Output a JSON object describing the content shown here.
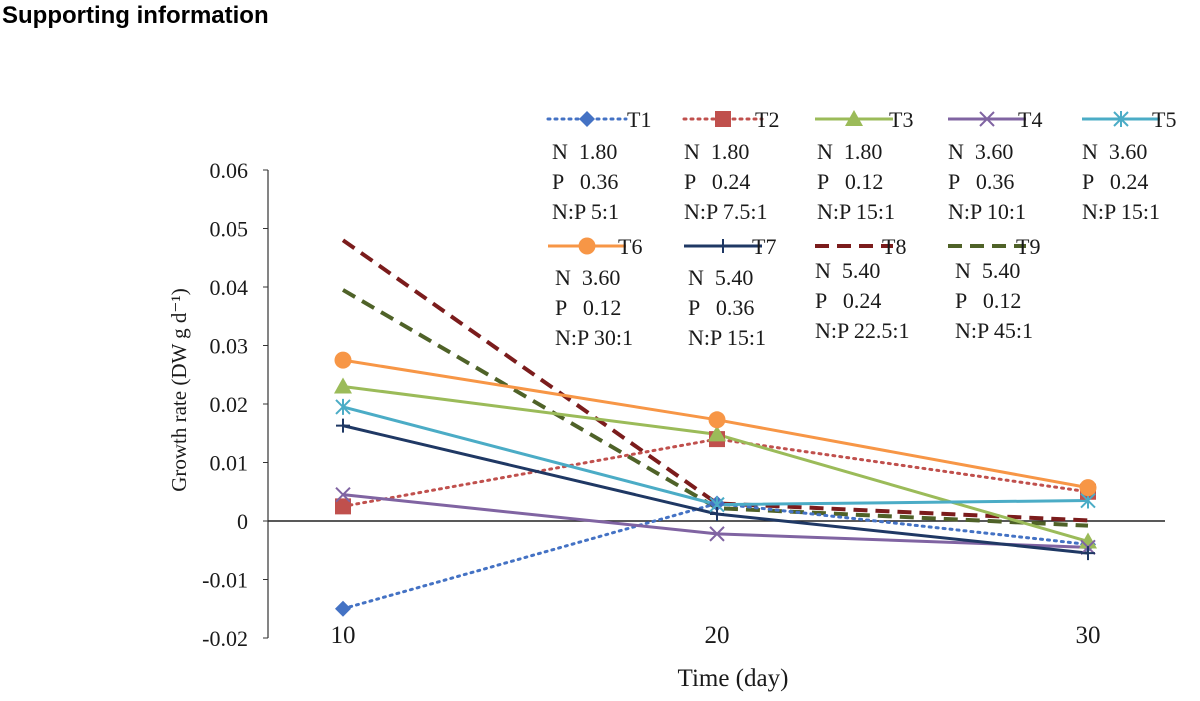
{
  "page": {
    "heading": "Supporting information"
  },
  "chart_data": {
    "type": "line",
    "title": "",
    "xlabel": "Time (day)",
    "ylabel": "Growth rate (DW g d⁻¹)",
    "x": [
      10,
      20,
      30
    ],
    "x_tick_labels": [
      "10",
      "20",
      "30"
    ],
    "ylim": [
      -0.02,
      0.06
    ],
    "y_ticks": [
      -0.02,
      -0.01,
      0,
      0.01,
      0.02,
      0.03,
      0.04,
      0.05,
      0.06
    ],
    "y_tick_labels": [
      "-0.02",
      "-0.01",
      "0",
      "0.01",
      "0.02",
      "0.03",
      "0.04",
      "0.05",
      "0.06"
    ],
    "grid": false,
    "legend_position": "top-right",
    "series": [
      {
        "name": "T1",
        "values": [
          -0.015,
          0.003,
          -0.004
        ],
        "color": "#4472c4",
        "dash": "dotted",
        "marker": "diamond",
        "n": "N  1.80",
        "p": "P   0.36",
        "np": "N:P 5:1"
      },
      {
        "name": "T2",
        "values": [
          0.0025,
          0.014,
          0.005
        ],
        "color": "#c0504d",
        "dash": "dotted",
        "marker": "square",
        "n": "N  1.80",
        "p": "P   0.24",
        "np": "N:P 7.5:1"
      },
      {
        "name": "T3",
        "values": [
          0.023,
          0.0148,
          -0.0035
        ],
        "color": "#9bbb59",
        "dash": "solid",
        "marker": "triangle",
        "n": "N  1.80",
        "p": "P   0.12",
        "np": "N:P 15:1"
      },
      {
        "name": "T4",
        "values": [
          0.0045,
          -0.0022,
          -0.0045
        ],
        "color": "#8064a2",
        "dash": "solid",
        "marker": "x",
        "n": "N  3.60",
        "p": "P   0.36",
        "np": "N:P 10:1"
      },
      {
        "name": "T5",
        "values": [
          0.0195,
          0.0028,
          0.0035
        ],
        "color": "#4bacc6",
        "dash": "solid",
        "marker": "asterisk",
        "n": "N  3.60",
        "p": "P   0.24",
        "np": "N:P 15:1"
      },
      {
        "name": "T6",
        "values": [
          0.0275,
          0.0173,
          0.0057
        ],
        "color": "#f79646",
        "dash": "solid",
        "marker": "circle",
        "n": "N  3.60",
        "p": "P   0.12",
        "np": "N:P 30:1"
      },
      {
        "name": "T7",
        "values": [
          0.0163,
          0.0012,
          -0.0055
        ],
        "color": "#1f3864",
        "dash": "solid",
        "marker": "plus",
        "n": "N  5.40",
        "p": "P   0.36",
        "np": "N:P 15:1"
      },
      {
        "name": "T8",
        "values": [
          0.048,
          0.003,
          0.0001
        ],
        "color": "#7b1c1c",
        "dash": "dashed",
        "marker": "none",
        "n": "N  5.40",
        "p": "P   0.24",
        "np": "N:P 22.5:1"
      },
      {
        "name": "T9",
        "values": [
          0.0395,
          0.0022,
          -0.0008
        ],
        "color": "#4f6228",
        "dash": "dashed",
        "marker": "none",
        "n": "N  5.40",
        "p": "P   0.12",
        "np": "N:P 45:1"
      }
    ]
  }
}
